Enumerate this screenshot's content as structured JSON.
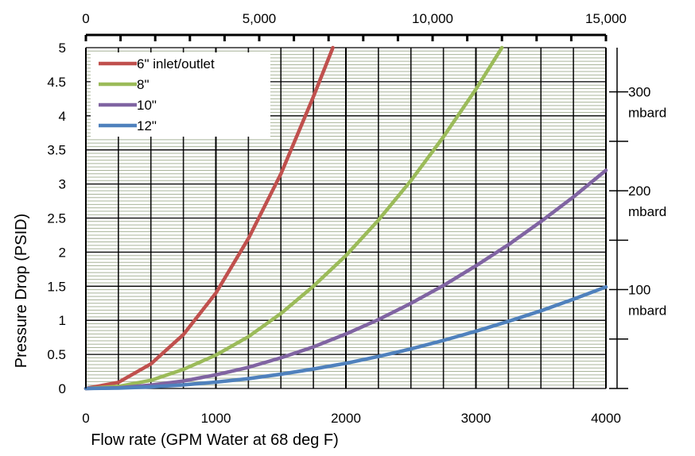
{
  "chart_data": {
    "type": "line",
    "title": "",
    "xlabel": "Flow rate (GPM Water at 68 deg F)",
    "ylabel": "Pressure Drop (PSID)",
    "xlim": [
      0,
      4000
    ],
    "ylim": [
      0,
      5
    ],
    "x_ticks": [
      0,
      1000,
      2000,
      3000,
      4000
    ],
    "x_tick_labels": [
      "0",
      "1000",
      "2000",
      "3000",
      "4000"
    ],
    "y_ticks": [
      0,
      0.5,
      1,
      1.5,
      2,
      2.5,
      3,
      3.5,
      4,
      4.5,
      5
    ],
    "y_tick_labels": [
      "0",
      "0.5",
      "1",
      "1.5",
      "2",
      "2.5",
      "3",
      "3.5",
      "4",
      "4.5",
      "5"
    ],
    "secondary_x_axis": {
      "position": "top",
      "xlim": [
        0,
        15000
      ],
      "tick_labels": [
        "0",
        "5,000",
        "10,000",
        "15,000"
      ],
      "label_values": [
        0,
        5000,
        10000,
        15000
      ]
    },
    "secondary_y_axis": {
      "position": "right",
      "unit": "mbard",
      "ylim_mbard": [
        0,
        344.7
      ],
      "ticks_mbard": [
        0,
        50,
        100,
        150,
        200,
        250,
        300
      ],
      "labeled_ticks": [
        {
          "value": 100,
          "label": "100",
          "unit": "mbard"
        },
        {
          "value": 200,
          "label": "200",
          "unit": "mbard"
        },
        {
          "value": 300,
          "label": "300",
          "unit": "mbard"
        }
      ]
    },
    "grid": true,
    "legend_position": "top-left",
    "series": [
      {
        "name": "6\" inlet/outlet",
        "color": "#c0504d",
        "x": [
          0,
          250,
          500,
          750,
          1000,
          1250,
          1500,
          1750,
          1900
        ],
        "y": [
          0,
          0.09,
          0.36,
          0.79,
          1.4,
          2.2,
          3.15,
          4.28,
          5.0
        ]
      },
      {
        "name": "8\"",
        "color": "#9bbb59",
        "x": [
          0,
          250,
          500,
          750,
          1000,
          1250,
          1500,
          1750,
          2000,
          2250,
          2500,
          2750,
          3000,
          3200
        ],
        "y": [
          0,
          0.03,
          0.12,
          0.28,
          0.49,
          0.76,
          1.1,
          1.5,
          1.95,
          2.47,
          3.05,
          3.69,
          4.39,
          5.0
        ]
      },
      {
        "name": "10\"",
        "color": "#8064a2",
        "x": [
          0,
          250,
          500,
          750,
          1000,
          1250,
          1500,
          1750,
          2000,
          2250,
          2500,
          2750,
          3000,
          3250,
          3500,
          3750,
          4000
        ],
        "y": [
          0,
          0.01,
          0.05,
          0.11,
          0.2,
          0.31,
          0.45,
          0.61,
          0.8,
          1.01,
          1.25,
          1.51,
          1.8,
          2.11,
          2.45,
          2.81,
          3.2
        ]
      },
      {
        "name": "12\"",
        "color": "#4f81bd",
        "x": [
          0,
          250,
          500,
          750,
          1000,
          1250,
          1500,
          1750,
          2000,
          2250,
          2500,
          2750,
          3000,
          3250,
          3500,
          3750,
          4000
        ],
        "y": [
          0,
          0.006,
          0.023,
          0.052,
          0.093,
          0.145,
          0.21,
          0.285,
          0.37,
          0.47,
          0.58,
          0.705,
          0.84,
          0.985,
          1.14,
          1.31,
          1.49
        ]
      }
    ]
  }
}
